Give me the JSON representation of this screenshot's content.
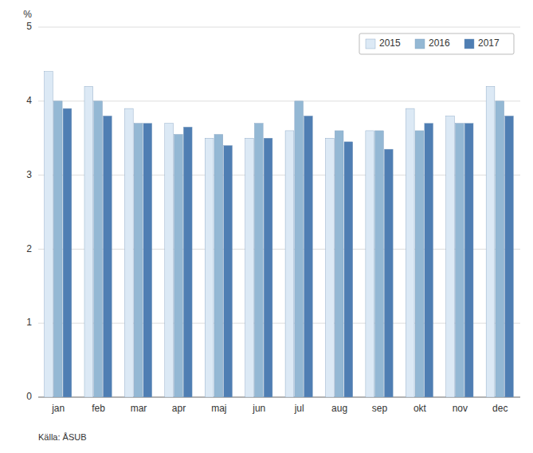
{
  "chart_data": {
    "type": "bar",
    "categories": [
      "jan",
      "feb",
      "mar",
      "apr",
      "maj",
      "jun",
      "jul",
      "aug",
      "sep",
      "okt",
      "nov",
      "dec"
    ],
    "series": [
      {
        "name": "2015",
        "color": "#dce9f5",
        "values": [
          4.4,
          4.2,
          3.9,
          3.7,
          3.5,
          3.5,
          3.6,
          3.5,
          3.6,
          3.9,
          3.8,
          4.2
        ]
      },
      {
        "name": "2016",
        "color": "#94b8d4",
        "values": [
          4.0,
          4.0,
          3.7,
          3.55,
          3.55,
          3.7,
          4.0,
          3.6,
          3.6,
          3.6,
          3.7,
          4.0
        ]
      },
      {
        "name": "2017",
        "color": "#4f7eb3",
        "values": [
          3.9,
          3.8,
          3.7,
          3.65,
          3.4,
          3.5,
          3.8,
          3.45,
          3.35,
          3.7,
          3.7,
          3.8
        ]
      }
    ],
    "ylabel": "%",
    "ylim": [
      0,
      5
    ],
    "yticks": [
      0,
      1,
      2,
      3,
      4,
      5
    ],
    "grid": true,
    "legend": "upper right",
    "annotations": [
      "Källa: ÅSUB"
    ]
  }
}
